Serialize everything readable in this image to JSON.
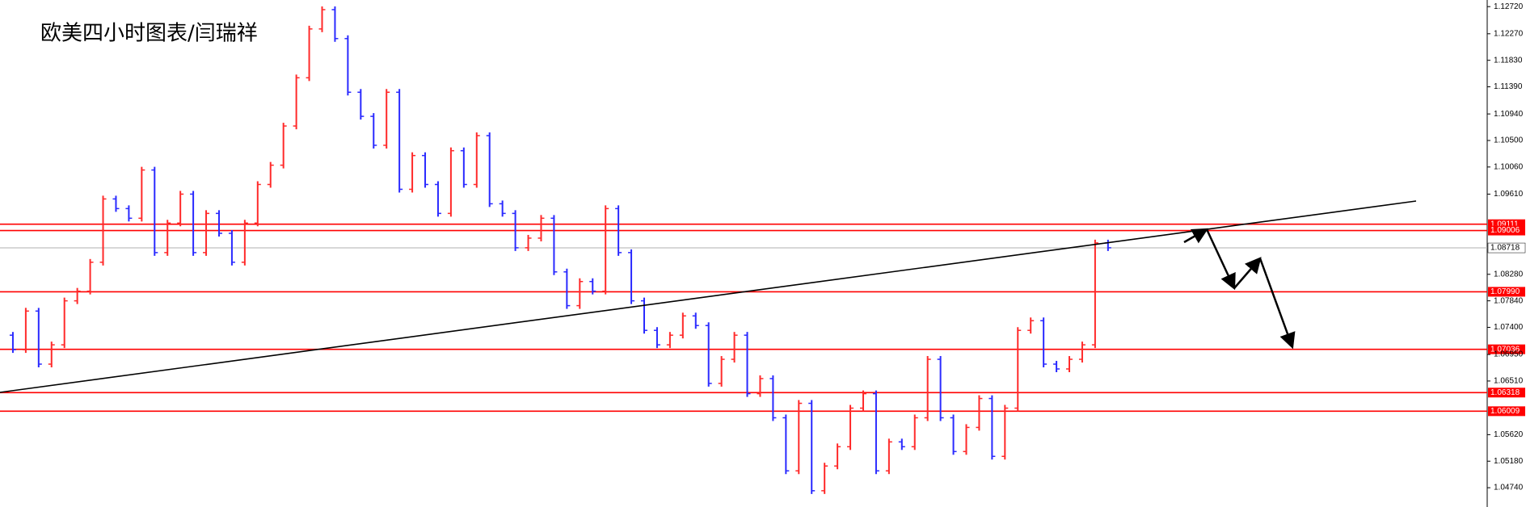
{
  "chart_data": {
    "type": "candles",
    "title": "欧美四小时图表/闫瑞祥",
    "up_color": "#ff2a2a",
    "down_color": "#2a2aff",
    "level_color": "#ff0000",
    "current_color": "#b0b0b0",
    "ylim": [
      1.0442,
      1.1283
    ],
    "yticks": [
      {
        "value": 1.1272,
        "label": "1.12720"
      },
      {
        "value": 1.1227,
        "label": "1.12270"
      },
      {
        "value": 1.1183,
        "label": "1.11830"
      },
      {
        "value": 1.1139,
        "label": "1.11390"
      },
      {
        "value": 1.1094,
        "label": "1.10940"
      },
      {
        "value": 1.105,
        "label": "1.10500"
      },
      {
        "value": 1.1006,
        "label": "1.10060"
      },
      {
        "value": 1.0961,
        "label": "1.09610"
      },
      {
        "value": 1.0828,
        "label": "1.08280"
      },
      {
        "value": 1.0784,
        "label": "1.07840"
      },
      {
        "value": 1.074,
        "label": "1.07400"
      },
      {
        "value": 1.0695,
        "label": "1.06950"
      },
      {
        "value": 1.0651,
        "label": "1.06510"
      },
      {
        "value": 1.0562,
        "label": "1.05620"
      },
      {
        "value": 1.0518,
        "label": "1.05180"
      },
      {
        "value": 1.0474,
        "label": "1.04740"
      }
    ],
    "levels": [
      1.09111,
      1.09006,
      {
        "value": 1.0799,
        "label": "1.07990"
      },
      1.07036,
      1.06318,
      1.06009
    ],
    "current": 1.08718,
    "values": [
      1.0727,
      1.0703,
      1.0767,
      1.0679,
      1.0711,
      1.0784,
      1.08,
      1.0848,
      1.0953,
      1.0937,
      1.0921,
      1.1001,
      1.0864,
      1.0913,
      1.0961,
      1.0864,
      1.0929,
      1.0896,
      1.0848,
      1.0913,
      1.0977,
      1.1009,
      1.1074,
      1.1154,
      1.1235,
      1.1267,
      1.1219,
      1.113,
      1.109,
      1.1042,
      1.113,
      1.0969,
      1.1025,
      1.0977,
      1.0929,
      1.1033,
      1.0977,
      1.1058,
      1.0945,
      1.0929,
      1.0872,
      1.0888,
      1.0921,
      1.0832,
      1.0776,
      1.0816,
      1.08,
      1.0937,
      1.0864,
      1.0784,
      1.0735,
      1.0711,
      1.0727,
      1.0759,
      1.0743,
      1.0647,
      1.0687,
      1.0727,
      1.063,
      1.0655,
      1.059,
      1.0502,
      1.0614,
      1.0469,
      1.051,
      1.0542,
      1.0606,
      1.063,
      1.0502,
      1.055,
      1.0542,
      1.059,
      1.0687,
      1.059,
      1.0534,
      1.0574,
      1.0622,
      1.0526,
      1.0606,
      1.0735,
      1.0751,
      1.0679,
      1.0671,
      1.0687,
      1.0711,
      1.088,
      1.0872
    ]
  }
}
